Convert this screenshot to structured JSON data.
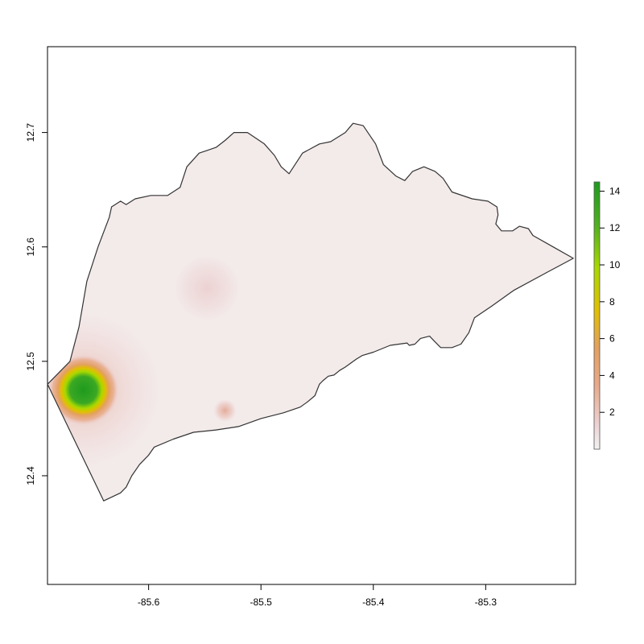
{
  "chart_data": {
    "type": "heatmap",
    "title": "",
    "xlabel": "",
    "ylabel": "",
    "xlim": [
      -85.69,
      -85.22
    ],
    "ylim": [
      12.305,
      12.775
    ],
    "x_ticks": [
      {
        "value": -85.6,
        "label": "-85.6"
      },
      {
        "value": -85.5,
        "label": "-85.5"
      },
      {
        "value": -85.4,
        "label": "-85.4"
      },
      {
        "value": -85.3,
        "label": "-85.3"
      }
    ],
    "y_ticks": [
      {
        "value": 12.4,
        "label": "12.4"
      },
      {
        "value": 12.5,
        "label": "12.5"
      },
      {
        "value": 12.6,
        "label": "12.6"
      },
      {
        "value": 12.7,
        "label": "12.7"
      }
    ],
    "legend": {
      "position": "right",
      "min": 0,
      "max": 14.5,
      "ticks": [
        {
          "value": 2,
          "label": "2"
        },
        {
          "value": 4,
          "label": "4"
        },
        {
          "value": 6,
          "label": "6"
        },
        {
          "value": 8,
          "label": "8"
        },
        {
          "value": 10,
          "label": "10"
        },
        {
          "value": 12,
          "label": "12"
        },
        {
          "value": 14,
          "label": "14"
        }
      ],
      "colors": [
        "#f2f2f2",
        "#eccfcf",
        "#e8aa8a",
        "#e3a060",
        "#e0c000",
        "#a8d800",
        "#50b020",
        "#1e9a1e"
      ]
    },
    "boundary": [
      [
        -85.69,
        12.48
      ],
      [
        -85.67,
        12.5
      ],
      [
        -85.662,
        12.53
      ],
      [
        -85.655,
        12.57
      ],
      [
        -85.645,
        12.6
      ],
      [
        -85.635,
        12.626
      ],
      [
        -85.633,
        12.635
      ],
      [
        -85.625,
        12.64
      ],
      [
        -85.62,
        12.637
      ],
      [
        -85.612,
        12.642
      ],
      [
        -85.598,
        12.645
      ],
      [
        -85.583,
        12.645
      ],
      [
        -85.572,
        12.652
      ],
      [
        -85.566,
        12.67
      ],
      [
        -85.555,
        12.682
      ],
      [
        -85.54,
        12.687
      ],
      [
        -85.532,
        12.693
      ],
      [
        -85.524,
        12.7
      ],
      [
        -85.512,
        12.7
      ],
      [
        -85.497,
        12.69
      ],
      [
        -85.488,
        12.68
      ],
      [
        -85.482,
        12.67
      ],
      [
        -85.475,
        12.664
      ],
      [
        -85.463,
        12.682
      ],
      [
        -85.448,
        12.69
      ],
      [
        -85.438,
        12.692
      ],
      [
        -85.425,
        12.7
      ],
      [
        -85.418,
        12.708
      ],
      [
        -85.409,
        12.706
      ],
      [
        -85.398,
        12.69
      ],
      [
        -85.391,
        12.672
      ],
      [
        -85.38,
        12.662
      ],
      [
        -85.372,
        12.658
      ],
      [
        -85.365,
        12.666
      ],
      [
        -85.355,
        12.67
      ],
      [
        -85.345,
        12.666
      ],
      [
        -85.338,
        12.66
      ],
      [
        -85.33,
        12.648
      ],
      [
        -85.312,
        12.642
      ],
      [
        -85.298,
        12.64
      ],
      [
        -85.29,
        12.635
      ],
      [
        -85.289,
        12.628
      ],
      [
        -85.291,
        12.62
      ],
      [
        -85.286,
        12.614
      ],
      [
        -85.276,
        12.614
      ],
      [
        -85.27,
        12.618
      ],
      [
        -85.262,
        12.616
      ],
      [
        -85.258,
        12.61
      ],
      [
        -85.24,
        12.6
      ],
      [
        -85.222,
        12.59
      ],
      [
        -85.245,
        12.578
      ],
      [
        -85.275,
        12.562
      ],
      [
        -85.295,
        12.548
      ],
      [
        -85.31,
        12.538
      ],
      [
        -85.315,
        12.525
      ],
      [
        -85.322,
        12.515
      ],
      [
        -85.33,
        12.512
      ],
      [
        -85.34,
        12.512
      ],
      [
        -85.346,
        12.518
      ],
      [
        -85.35,
        12.522
      ],
      [
        -85.358,
        12.52
      ],
      [
        -85.363,
        12.515
      ],
      [
        -85.368,
        12.514
      ],
      [
        -85.37,
        12.516
      ],
      [
        -85.385,
        12.514
      ],
      [
        -85.4,
        12.508
      ],
      [
        -85.41,
        12.505
      ],
      [
        -85.415,
        12.502
      ],
      [
        -85.425,
        12.495
      ],
      [
        -85.43,
        12.492
      ],
      [
        -85.435,
        12.488
      ],
      [
        -85.44,
        12.487
      ],
      [
        -85.445,
        12.483
      ],
      [
        -85.448,
        12.48
      ],
      [
        -85.45,
        12.475
      ],
      [
        -85.452,
        12.47
      ],
      [
        -85.458,
        12.465
      ],
      [
        -85.465,
        12.46
      ],
      [
        -85.48,
        12.455
      ],
      [
        -85.5,
        12.45
      ],
      [
        -85.52,
        12.443
      ],
      [
        -85.54,
        12.44
      ],
      [
        -85.56,
        12.438
      ],
      [
        -85.578,
        12.432
      ],
      [
        -85.595,
        12.425
      ],
      [
        -85.6,
        12.418
      ],
      [
        -85.608,
        12.41
      ],
      [
        -85.615,
        12.4
      ],
      [
        -85.62,
        12.39
      ],
      [
        -85.625,
        12.385
      ],
      [
        -85.64,
        12.378
      ],
      [
        -85.69,
        12.48
      ]
    ],
    "hotspots": [
      {
        "x": -85.658,
        "y": 12.475,
        "value": 14.2
      },
      {
        "x": -85.532,
        "y": 12.457,
        "value": 2.2
      },
      {
        "x": -85.548,
        "y": 12.564,
        "value": 1.0
      }
    ]
  }
}
